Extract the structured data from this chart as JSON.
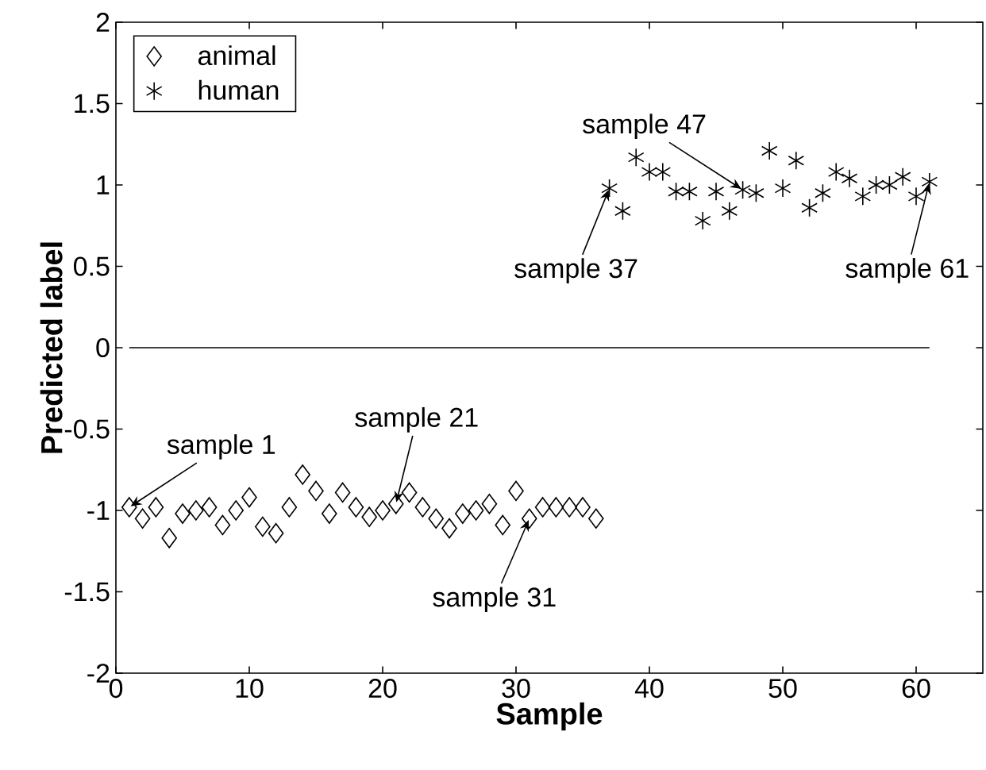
{
  "chart_data": {
    "type": "scatter",
    "xlabel": "Sample",
    "ylabel": "Predicted label",
    "xlim": [
      0,
      65
    ],
    "ylim": [
      -2,
      2
    ],
    "xticks": [
      0,
      10,
      20,
      30,
      40,
      50,
      60
    ],
    "yticks": [
      -2,
      -1.5,
      -1,
      -0.5,
      0,
      0.5,
      1,
      1.5,
      2
    ],
    "legend": "top left",
    "series": [
      {
        "name": "animal",
        "marker": "diamond",
        "color": "#000000",
        "x": [
          1,
          2,
          3,
          4,
          5,
          6,
          7,
          8,
          9,
          10,
          11,
          12,
          13,
          14,
          15,
          16,
          17,
          18,
          19,
          20,
          21,
          22,
          23,
          24,
          25,
          26,
          27,
          28,
          29,
          30,
          31,
          32,
          33,
          34,
          35,
          36
        ],
        "values": [
          -0.98,
          -1.05,
          -0.98,
          -1.17,
          -1.02,
          -1.0,
          -0.98,
          -1.09,
          -1.0,
          -0.92,
          -1.1,
          -1.14,
          -0.98,
          -0.78,
          -0.88,
          -1.02,
          -0.89,
          -0.98,
          -1.04,
          -1.0,
          -0.96,
          -0.89,
          -0.98,
          -1.05,
          -1.11,
          -1.02,
          -1.0,
          -0.96,
          -1.09,
          -0.88,
          -1.05,
          -0.98,
          -0.98,
          -0.98,
          -0.98,
          -1.05
        ]
      },
      {
        "name": "human",
        "marker": "cross",
        "color": "#000000",
        "x": [
          37,
          38,
          39,
          40,
          41,
          42,
          43,
          44,
          45,
          46,
          47,
          48,
          49,
          50,
          51,
          52,
          53,
          54,
          55,
          56,
          57,
          58,
          59,
          60,
          61
        ],
        "values": [
          0.98,
          0.84,
          1.17,
          1.08,
          1.08,
          0.96,
          0.96,
          0.78,
          0.96,
          0.84,
          0.97,
          0.95,
          1.21,
          0.98,
          1.15,
          0.86,
          0.95,
          1.08,
          1.04,
          0.93,
          1.0,
          1.0,
          1.05,
          0.93,
          1.02
        ]
      },
      {
        "type": "line",
        "marker": "none",
        "color": "#000000",
        "x": [
          1,
          61
        ],
        "values": [
          0,
          0
        ]
      }
    ],
    "annotations": [
      {
        "text": "sample 1",
        "x": 1,
        "y": -0.98
      },
      {
        "text": "sample 21",
        "x": 21,
        "y": -0.96
      },
      {
        "text": "sample 31",
        "x": 31,
        "y": -1.05
      },
      {
        "text": "sample 37",
        "x": 37,
        "y": 0.98
      },
      {
        "text": "sample 47",
        "x": 47,
        "y": 0.97
      },
      {
        "text": "sample 61",
        "x": 61,
        "y": 1.02
      }
    ]
  }
}
